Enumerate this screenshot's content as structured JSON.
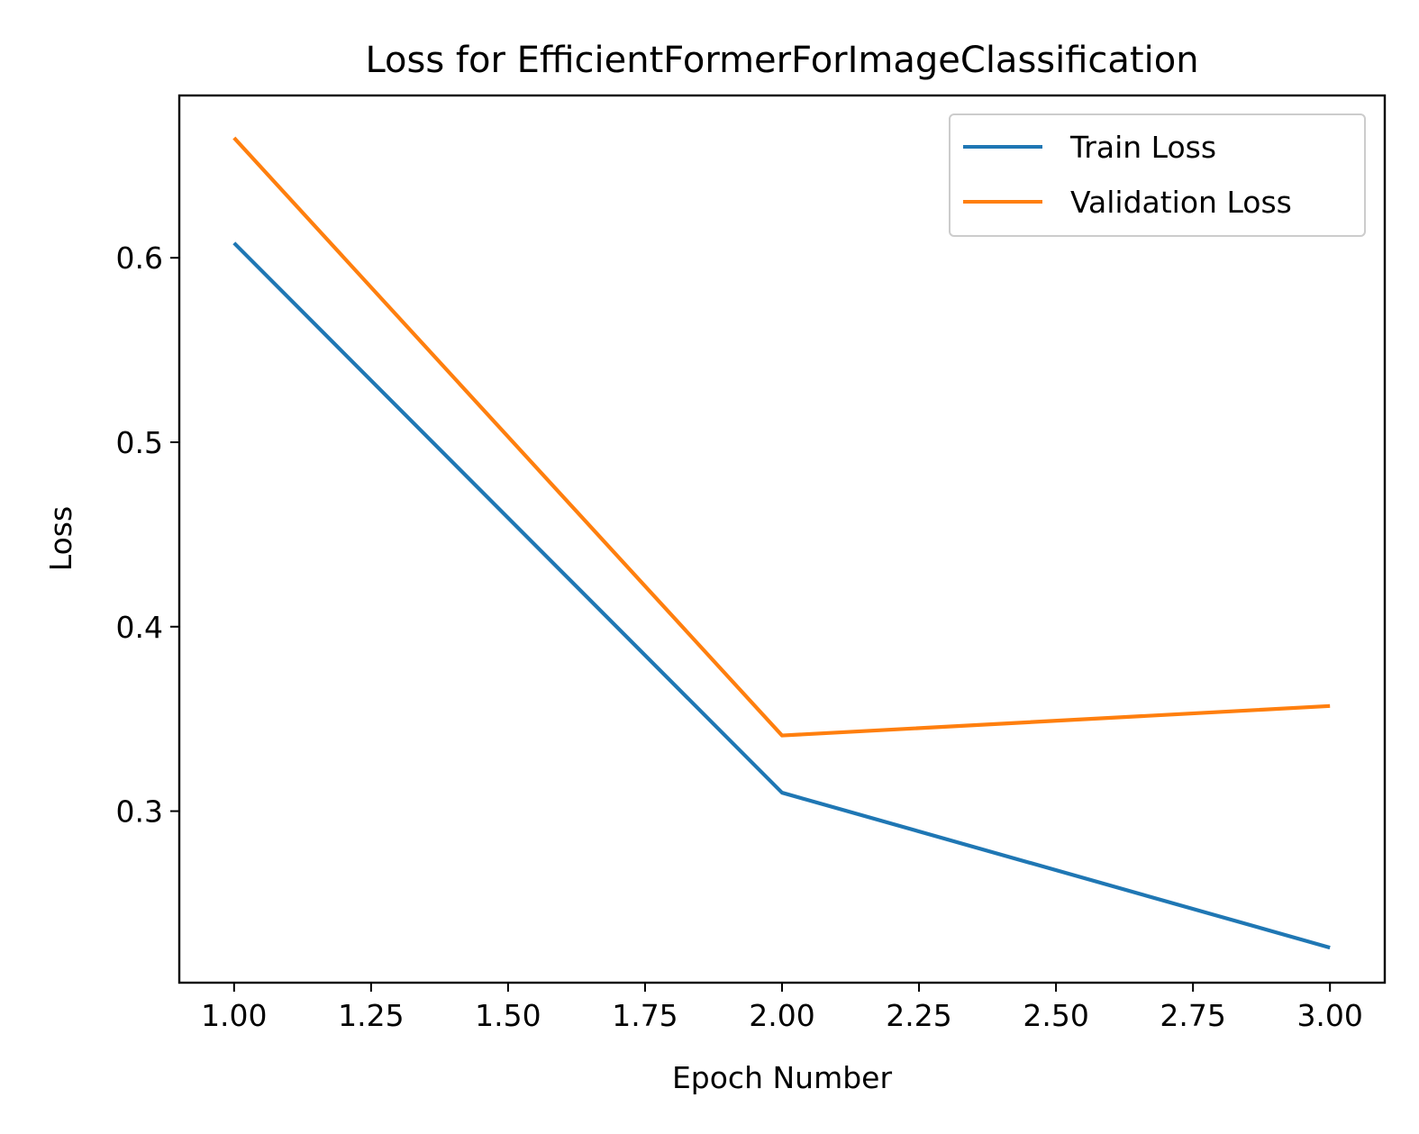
{
  "chart_data": {
    "type": "line",
    "title": "Loss for EfficientFormerForImageClassification",
    "xlabel": "Epoch Number",
    "ylabel": "Loss",
    "xlim": [
      0.9,
      3.1
    ],
    "ylim": [
      0.207,
      0.688
    ],
    "xticks": [
      1.0,
      1.25,
      1.5,
      1.75,
      2.0,
      2.25,
      2.5,
      2.75,
      3.0
    ],
    "xtick_labels": [
      "1.00",
      "1.25",
      "1.50",
      "1.75",
      "2.00",
      "2.25",
      "2.50",
      "2.75",
      "3.00"
    ],
    "yticks": [
      0.3,
      0.4,
      0.5,
      0.6
    ],
    "ytick_labels": [
      "0.3",
      "0.4",
      "0.5",
      "0.6"
    ],
    "grid": false,
    "legend_position": "top-right",
    "x": [
      1,
      2,
      3
    ],
    "series": [
      {
        "name": "Train Loss",
        "color": "#1f77b4",
        "values": [
          0.608,
          0.31,
          0.226
        ]
      },
      {
        "name": "Validation Loss",
        "color": "#ff7f0e",
        "values": [
          0.665,
          0.341,
          0.357
        ]
      }
    ]
  }
}
